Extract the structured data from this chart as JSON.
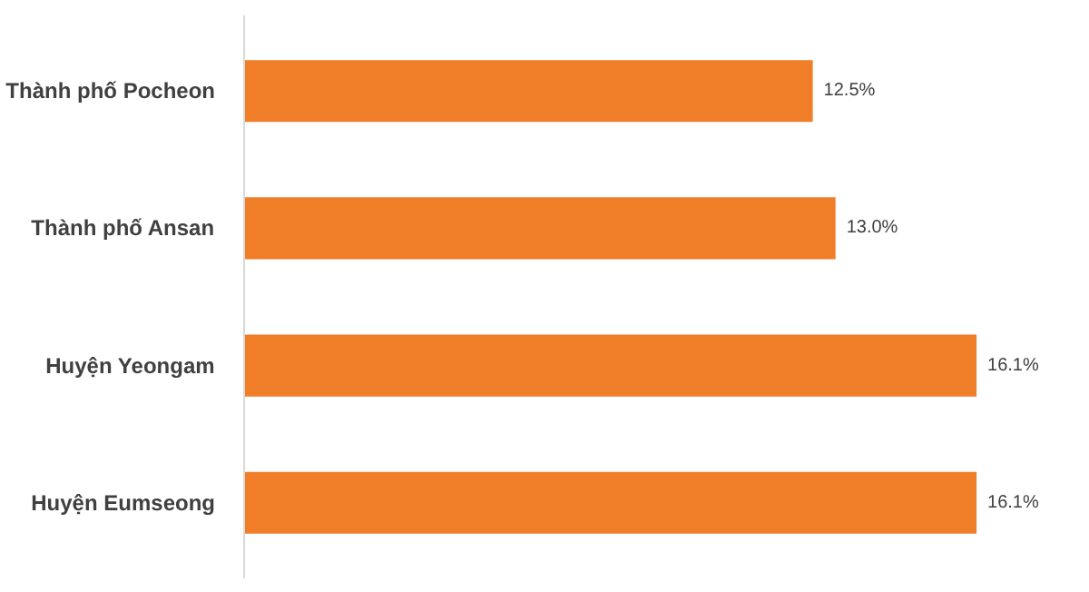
{
  "chart_data": {
    "type": "bar",
    "orientation": "horizontal",
    "categories": [
      "Thành phố Pocheon",
      "Thành phố Ansan",
      "Huyện Yeongam",
      "Huyện Eumseong"
    ],
    "values": [
      12.5,
      13.0,
      16.1,
      16.1
    ],
    "value_labels": [
      "12.5%",
      "13.0%",
      "16.1%",
      "16.1%"
    ],
    "color": "#f07d28",
    "grid": false
  }
}
